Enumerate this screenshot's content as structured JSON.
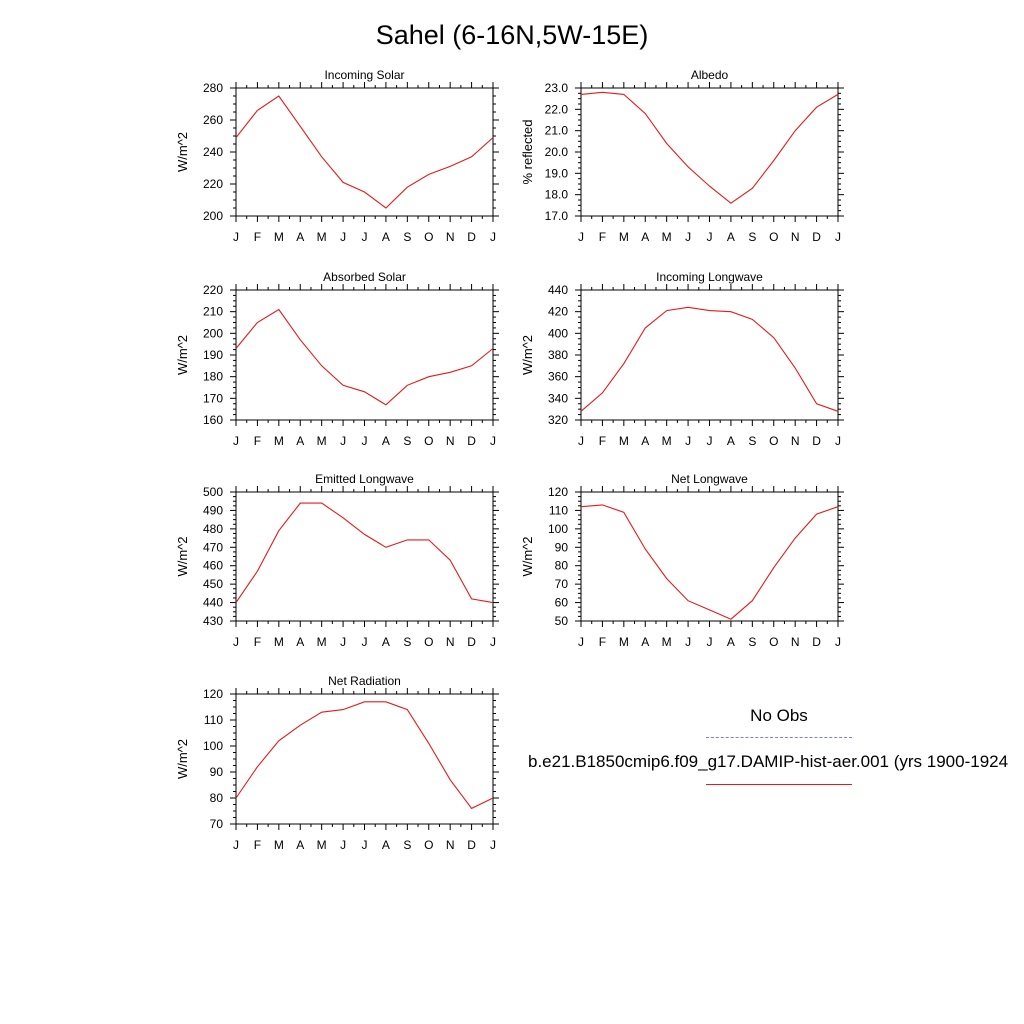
{
  "title": "Sahel (6-16N,5W-15E)",
  "legend": {
    "obs_label": "No Obs",
    "model_label": "b.e21.B1850cmip6.f09_g17.DAMIP-hist-aer.001 (yrs 1900-1924",
    "obs_color": "#7d7df0",
    "model_color": "#e41a1c"
  },
  "chart_data": [
    {
      "type": "line",
      "title": "Incoming Solar",
      "ylabel": "W/m^2",
      "xlabel": "",
      "categories": [
        "J",
        "F",
        "M",
        "A",
        "M",
        "J",
        "J",
        "A",
        "S",
        "O",
        "N",
        "D",
        "J"
      ],
      "ylim": [
        200,
        280
      ],
      "yticks": [
        "200",
        "220",
        "240",
        "260",
        "280"
      ],
      "ytick_values": [
        200,
        220,
        240,
        260,
        280
      ],
      "series": [
        {
          "values": [
            249,
            266,
            275,
            256,
            237,
            221,
            215,
            205,
            218,
            226,
            231,
            237,
            249
          ],
          "color": "#e41a1c"
        }
      ]
    },
    {
      "type": "line",
      "title": "Albedo",
      "ylabel": "% reflected",
      "xlabel": "",
      "categories": [
        "J",
        "F",
        "M",
        "A",
        "M",
        "J",
        "J",
        "A",
        "S",
        "O",
        "N",
        "D",
        "J"
      ],
      "ylim": [
        17.0,
        23.0
      ],
      "yticks": [
        "17.0",
        "18.0",
        "19.0",
        "20.0",
        "21.0",
        "22.0",
        "23.0"
      ],
      "ytick_values": [
        17,
        18,
        19,
        20,
        21,
        22,
        23
      ],
      "series": [
        {
          "values": [
            22.7,
            22.8,
            22.7,
            21.8,
            20.4,
            19.3,
            18.4,
            17.6,
            18.3,
            19.6,
            21.0,
            22.1,
            22.7
          ],
          "color": "#e41a1c"
        }
      ]
    },
    {
      "type": "line",
      "title": "Absorbed Solar",
      "ylabel": "W/m^2",
      "xlabel": "",
      "categories": [
        "J",
        "F",
        "M",
        "A",
        "M",
        "J",
        "J",
        "A",
        "S",
        "O",
        "N",
        "D",
        "J"
      ],
      "ylim": [
        160,
        220
      ],
      "yticks": [
        "160",
        "170",
        "180",
        "190",
        "200",
        "210",
        "220"
      ],
      "ytick_values": [
        160,
        170,
        180,
        190,
        200,
        210,
        220
      ],
      "series": [
        {
          "values": [
            193,
            205,
            211,
            197,
            185,
            176,
            173,
            167,
            176,
            180,
            182,
            185,
            193
          ],
          "color": "#e41a1c"
        }
      ]
    },
    {
      "type": "line",
      "title": "Incoming Longwave",
      "ylabel": "W/m^2",
      "xlabel": "",
      "categories": [
        "J",
        "F",
        "M",
        "A",
        "M",
        "J",
        "J",
        "A",
        "S",
        "O",
        "N",
        "D",
        "J"
      ],
      "ylim": [
        320,
        440
      ],
      "yticks": [
        "320",
        "340",
        "360",
        "380",
        "400",
        "420",
        "440"
      ],
      "ytick_values": [
        320,
        340,
        360,
        380,
        400,
        420,
        440
      ],
      "series": [
        {
          "values": [
            328,
            345,
            372,
            405,
            421,
            424,
            421,
            420,
            413,
            396,
            368,
            335,
            328
          ],
          "color": "#e41a1c"
        }
      ]
    },
    {
      "type": "line",
      "title": "Emitted Longwave",
      "ylabel": "W/m^2",
      "xlabel": "",
      "categories": [
        "J",
        "F",
        "M",
        "A",
        "M",
        "J",
        "J",
        "A",
        "S",
        "O",
        "N",
        "D",
        "J"
      ],
      "ylim": [
        430,
        500
      ],
      "yticks": [
        "430",
        "440",
        "450",
        "460",
        "470",
        "480",
        "490",
        "500"
      ],
      "ytick_values": [
        430,
        440,
        450,
        460,
        470,
        480,
        490,
        500
      ],
      "series": [
        {
          "values": [
            440,
            457,
            479,
            494,
            494,
            486,
            477,
            470,
            474,
            474,
            463,
            442,
            440
          ],
          "color": "#e41a1c"
        }
      ]
    },
    {
      "type": "line",
      "title": "Net Longwave",
      "ylabel": "W/m^2",
      "xlabel": "",
      "categories": [
        "J",
        "F",
        "M",
        "A",
        "M",
        "J",
        "J",
        "A",
        "S",
        "O",
        "N",
        "D",
        "J"
      ],
      "ylim": [
        50,
        120
      ],
      "yticks": [
        "50",
        "60",
        "70",
        "80",
        "90",
        "100",
        "110",
        "120"
      ],
      "ytick_values": [
        50,
        60,
        70,
        80,
        90,
        100,
        110,
        120
      ],
      "series": [
        {
          "values": [
            112,
            113,
            109,
            89,
            73,
            61,
            56,
            51,
            61,
            79,
            95,
            108,
            112
          ],
          "color": "#e41a1c"
        }
      ]
    },
    {
      "type": "line",
      "title": "Net Radiation",
      "ylabel": "W/m^2",
      "xlabel": "",
      "categories": [
        "J",
        "F",
        "M",
        "A",
        "M",
        "J",
        "J",
        "A",
        "S",
        "O",
        "N",
        "D",
        "J"
      ],
      "ylim": [
        70,
        120
      ],
      "yticks": [
        "70",
        "80",
        "90",
        "100",
        "110",
        "120"
      ],
      "ytick_values": [
        70,
        80,
        90,
        100,
        110,
        120
      ],
      "series": [
        {
          "values": [
            80,
            92,
            102,
            108,
            113,
            114,
            117,
            117,
            114,
            101,
            87,
            76,
            80
          ],
          "color": "#e41a1c"
        }
      ]
    }
  ]
}
